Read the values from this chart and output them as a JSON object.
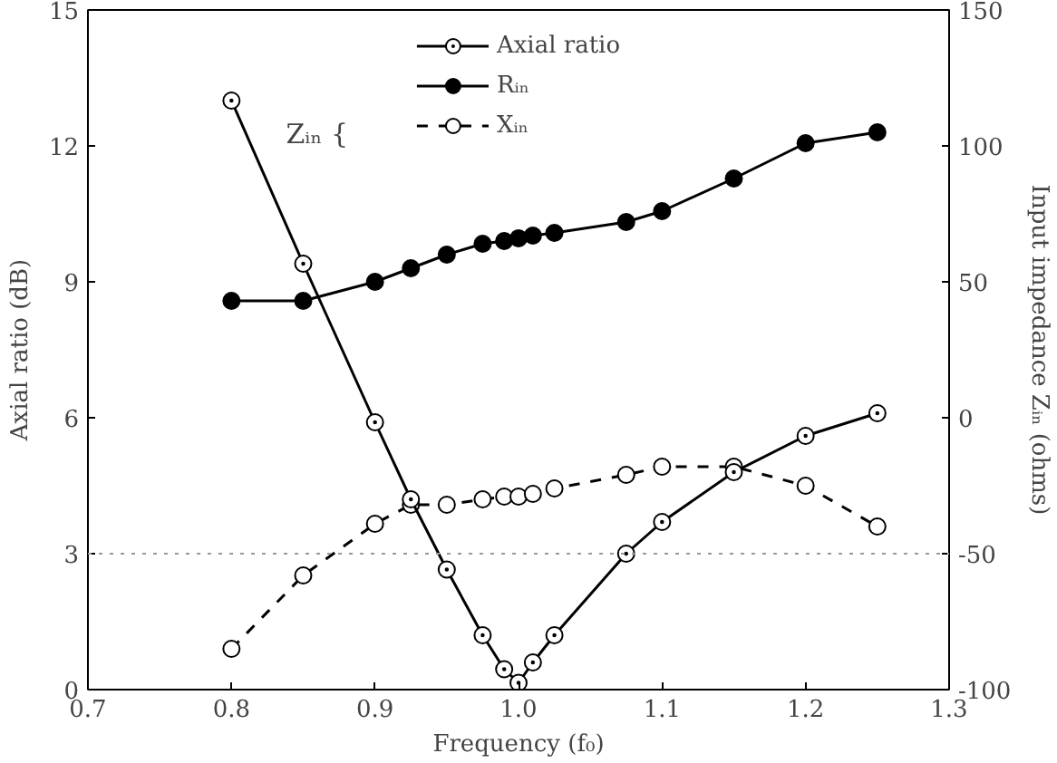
{
  "chart_data": {
    "type": "line",
    "xlabel": "Frequency (f₀)",
    "ylabel": "Axial ratio (dB)",
    "y2label": "Input impedance Zᵢₙ (ohms)",
    "xlim": [
      0.7,
      1.3
    ],
    "xticks": [
      {
        "value": 0.7,
        "label": "0.7"
      },
      {
        "value": 0.8,
        "label": "0.8"
      },
      {
        "value": 0.9,
        "label": "0.9"
      },
      {
        "value": 1.0,
        "label": "1.0"
      },
      {
        "value": 1.1,
        "label": "1.1"
      },
      {
        "value": 1.2,
        "label": "1.2"
      },
      {
        "value": 1.3,
        "label": "1.3"
      }
    ],
    "ylim": [
      0,
      15
    ],
    "yticks": [
      0,
      3,
      6,
      9,
      12,
      15
    ],
    "y2lim": [
      -100,
      150
    ],
    "y2ticks": [
      -100,
      -50,
      0,
      50,
      100,
      150
    ],
    "marker": "circle",
    "legend": "top",
    "grid": false,
    "annotations": [
      "Zᵢₙ {"
    ],
    "ref_lines": [
      {
        "axis": "y",
        "value": 3,
        "label": null,
        "color": "#999999",
        "line_style": "dotted"
      }
    ],
    "series": [
      {
        "name": "Axial ratio",
        "color": "#000000",
        "line_style": "solid",
        "x": [
          0.8,
          0.85,
          0.9,
          0.925,
          0.95,
          0.975,
          0.99,
          1.0,
          1.01,
          1.025,
          1.075,
          1.1,
          1.15,
          1.2,
          1.25
        ],
        "values": [
          13,
          9.4,
          5.9,
          4.2,
          2.65,
          1.2,
          0.45,
          0.15,
          0.6,
          1.2,
          3.0,
          3.7,
          4.8,
          5.6,
          6.1
        ]
      },
      {
        "name": "Rᵢₙ",
        "color": "#000000",
        "axis": "y2",
        "line_style": "solid",
        "x": [
          0.8,
          0.85,
          0.9,
          0.925,
          0.95,
          0.975,
          0.99,
          1.0,
          1.01,
          1.025,
          1.075,
          1.1,
          1.15,
          1.2,
          1.25
        ],
        "values": [
          43,
          43,
          50,
          55,
          60,
          64,
          65,
          66,
          67,
          68,
          72,
          76,
          88,
          101,
          105
        ]
      },
      {
        "name": "Xᵢₙ",
        "color": "#000000",
        "axis": "y2",
        "line_style": "dashed",
        "x": [
          0.8,
          0.85,
          0.9,
          0.925,
          0.95,
          0.975,
          0.99,
          1.0,
          1.01,
          1.025,
          1.075,
          1.1,
          1.15,
          1.2,
          1.25
        ],
        "values": [
          -85,
          -58,
          -39,
          -32,
          -32,
          -30,
          -29,
          -29,
          -28,
          -26,
          -21,
          -18,
          -18,
          -25,
          -40
        ]
      }
    ]
  }
}
